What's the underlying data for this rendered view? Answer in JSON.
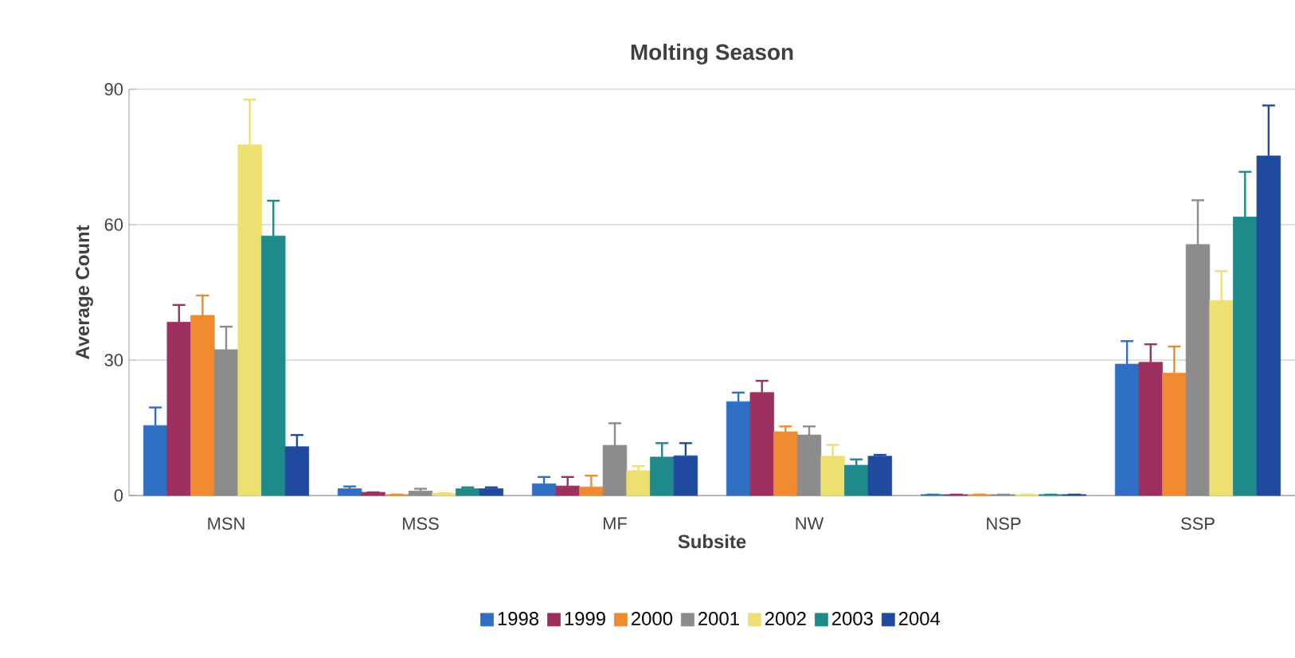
{
  "chart_data": {
    "type": "bar",
    "title": "Molting Season",
    "xlabel": "Subsite",
    "ylabel": "Average Count",
    "categories": [
      "MSN",
      "MSS",
      "MF",
      "NW",
      "NSP",
      "SSP"
    ],
    "ylim": [
      0,
      90
    ],
    "yticks": [
      0,
      30,
      60,
      90
    ],
    "grid": "y",
    "legend": "bottom",
    "series": [
      {
        "name": "1998",
        "color": "#2e6fc4",
        "values": [
          15.5,
          1.5,
          2.6,
          20.8,
          0.2,
          29.1
        ],
        "errors": [
          4,
          0.5,
          1.5,
          2,
          null,
          5.1
        ]
      },
      {
        "name": "1999",
        "color": "#9e3060",
        "values": [
          38.4,
          0.7,
          2.1,
          22.8,
          0.2,
          29.5
        ],
        "errors": [
          3.8,
          null,
          2,
          2.6,
          null,
          4
        ]
      },
      {
        "name": "2000",
        "color": "#f08a2e",
        "values": [
          39.9,
          0.2,
          1.9,
          14.1,
          0.2,
          27.1
        ],
        "errors": [
          4.4,
          null,
          2.5,
          1.2,
          null,
          5.9
        ]
      },
      {
        "name": "2001",
        "color": "#8c8c8c",
        "values": [
          32.3,
          1,
          11.1,
          13.4,
          0.2,
          55.6
        ],
        "errors": [
          5.1,
          0.5,
          4.9,
          1.9,
          null,
          9.8
        ]
      },
      {
        "name": "2002",
        "color": "#eee070",
        "values": [
          77.7,
          0.5,
          5.5,
          8.7,
          0.2,
          43.2
        ],
        "errors": [
          10,
          null,
          1,
          2.5,
          null,
          6.5
        ]
      },
      {
        "name": "2003",
        "color": "#1f8a8a",
        "values": [
          57.5,
          1.5,
          8.5,
          6.7,
          0.2,
          61.7
        ],
        "errors": [
          7.8,
          0.3,
          3.1,
          1.3,
          null,
          10
        ]
      },
      {
        "name": "2004",
        "color": "#1f4a9e",
        "values": [
          10.8,
          1.5,
          8.8,
          8.7,
          0.2,
          75.2
        ],
        "errors": [
          2.6,
          0.3,
          2.8,
          0.3,
          null,
          11.2
        ]
      }
    ]
  }
}
